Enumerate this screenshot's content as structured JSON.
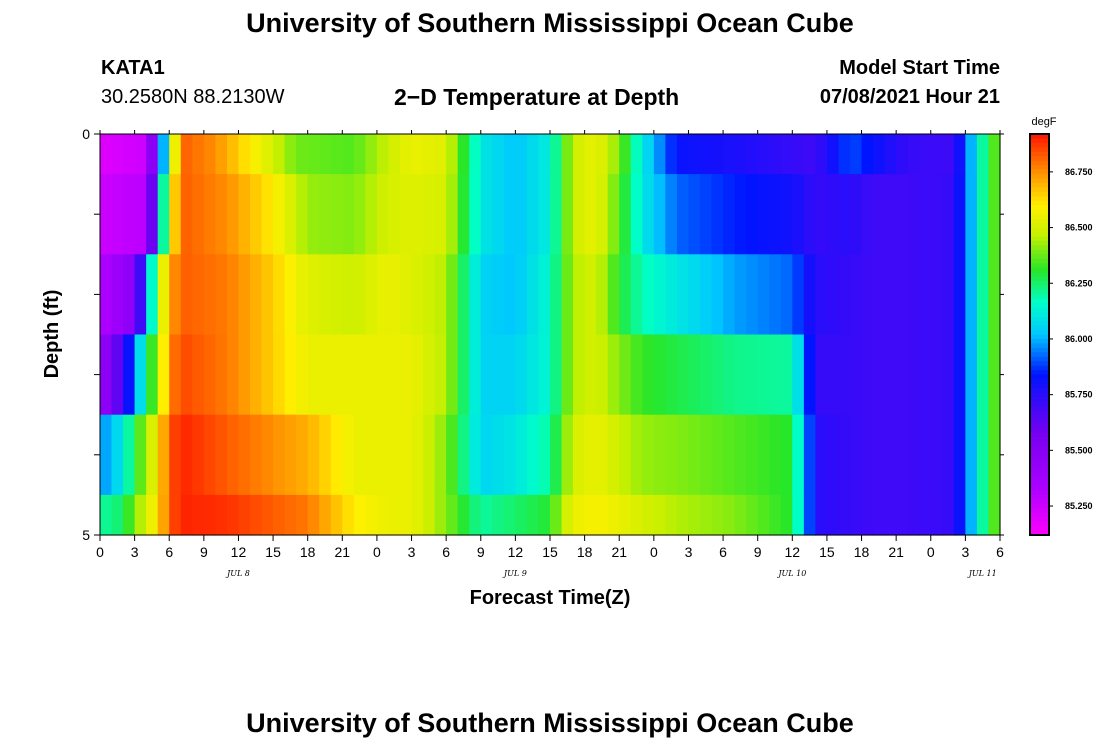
{
  "header": {
    "title": "University of Southern Mississippi Ocean Cube",
    "station_id": "KATA1",
    "coordinates": "30.2580N  88.2130W",
    "plot_title": "2−D Temperature at Depth",
    "model_start_label": "Model Start Time",
    "model_start_value": "07/08/2021 Hour 21"
  },
  "footer": {
    "title": "University of Southern Mississippi Ocean Cube"
  },
  "chart_data": {
    "type": "heatmap",
    "xlabel": "Forecast Time(Z)",
    "ylabel": "Depth (ft)",
    "colorbar_unit": "degF",
    "x_unit": "hours since 07/08 00Z",
    "x_range": [
      0,
      78
    ],
    "y_range": [
      0,
      5
    ],
    "y_ticks": [
      "0",
      "5"
    ],
    "x_ticks": [
      "0",
      "3",
      "6",
      "9",
      "12",
      "15",
      "18",
      "21",
      "0",
      "3",
      "6",
      "9",
      "12",
      "15",
      "18",
      "21",
      "0",
      "3",
      "6",
      "9",
      "12",
      "15",
      "18",
      "21",
      "0",
      "3",
      "6"
    ],
    "day_labels": [
      "JUL 8",
      "JUL 9",
      "JUL 10",
      "JUL 11"
    ],
    "colorbar_ticks": [
      "86.750",
      "86.500",
      "86.250",
      "86.000",
      "85.750",
      "85.500",
      "85.250"
    ],
    "colorbar_range": [
      85.12,
      86.92
    ],
    "depth_layers": [
      {
        "depth_top": 0.0,
        "depth_bottom": 0.5,
        "values": [
          [
            0,
            85.2
          ],
          [
            4,
            85.25
          ],
          [
            5,
            85.7
          ],
          [
            6,
            86.3
          ],
          [
            7,
            86.82
          ],
          [
            10,
            86.75
          ],
          [
            14,
            86.55
          ],
          [
            17,
            86.38
          ],
          [
            22,
            86.35
          ],
          [
            25,
            86.48
          ],
          [
            27,
            86.55
          ],
          [
            30,
            86.52
          ],
          [
            33,
            86.1
          ],
          [
            36,
            86.02
          ],
          [
            39,
            86.12
          ],
          [
            40,
            86.3
          ],
          [
            41,
            86.48
          ],
          [
            43,
            86.55
          ],
          [
            45,
            86.4
          ],
          [
            47,
            86.1
          ],
          [
            50,
            85.82
          ],
          [
            55,
            85.78
          ],
          [
            60,
            85.72
          ],
          [
            62,
            85.7
          ],
          [
            65,
            85.9
          ],
          [
            67,
            85.82
          ],
          [
            70,
            85.72
          ],
          [
            74,
            85.7
          ],
          [
            75,
            85.9
          ],
          [
            77,
            86.3
          ],
          [
            78,
            86.4
          ]
        ]
      },
      {
        "depth_top": 0.5,
        "depth_bottom": 1.5,
        "values": [
          [
            0,
            85.25
          ],
          [
            4,
            85.3
          ],
          [
            5,
            85.9
          ],
          [
            6,
            86.5
          ],
          [
            7,
            86.82
          ],
          [
            11,
            86.75
          ],
          [
            15,
            86.6
          ],
          [
            18,
            86.42
          ],
          [
            22,
            86.4
          ],
          [
            25,
            86.5
          ],
          [
            27,
            86.52
          ],
          [
            30,
            86.5
          ],
          [
            33,
            86.1
          ],
          [
            36,
            86.02
          ],
          [
            39,
            86.12
          ],
          [
            40,
            86.3
          ],
          [
            41,
            86.48
          ],
          [
            43,
            86.55
          ],
          [
            45,
            86.35
          ],
          [
            47,
            86.1
          ],
          [
            50,
            85.92
          ],
          [
            55,
            85.85
          ],
          [
            60,
            85.8
          ],
          [
            62,
            85.72
          ],
          [
            65,
            85.75
          ],
          [
            67,
            85.7
          ],
          [
            70,
            85.7
          ],
          [
            74,
            85.72
          ],
          [
            75,
            85.9
          ],
          [
            77,
            86.3
          ],
          [
            78,
            86.4
          ]
        ]
      },
      {
        "depth_top": 1.5,
        "depth_bottom": 2.5,
        "values": [
          [
            0,
            85.3
          ],
          [
            3,
            85.5
          ],
          [
            4,
            85.9
          ],
          [
            5,
            86.4
          ],
          [
            6,
            86.7
          ],
          [
            7,
            86.82
          ],
          [
            11,
            86.78
          ],
          [
            15,
            86.65
          ],
          [
            18,
            86.52
          ],
          [
            22,
            86.48
          ],
          [
            25,
            86.55
          ],
          [
            27,
            86.52
          ],
          [
            30,
            86.45
          ],
          [
            33,
            86.05
          ],
          [
            36,
            86.02
          ],
          [
            39,
            86.15
          ],
          [
            40,
            86.3
          ],
          [
            41,
            86.45
          ],
          [
            43,
            86.5
          ],
          [
            45,
            86.3
          ],
          [
            47,
            86.18
          ],
          [
            50,
            86.1
          ],
          [
            55,
            85.98
          ],
          [
            60,
            85.92
          ],
          [
            62,
            85.75
          ],
          [
            65,
            85.72
          ],
          [
            67,
            85.7
          ],
          [
            70,
            85.7
          ],
          [
            74,
            85.72
          ],
          [
            75,
            85.9
          ],
          [
            77,
            86.3
          ],
          [
            78,
            86.4
          ]
        ]
      },
      {
        "depth_top": 2.5,
        "depth_bottom": 3.5,
        "values": [
          [
            0,
            85.4
          ],
          [
            2,
            85.7
          ],
          [
            3,
            85.95
          ],
          [
            4,
            86.2
          ],
          [
            5,
            86.45
          ],
          [
            6,
            86.75
          ],
          [
            7,
            86.85
          ],
          [
            11,
            86.78
          ],
          [
            15,
            86.65
          ],
          [
            18,
            86.55
          ],
          [
            22,
            86.55
          ],
          [
            25,
            86.55
          ],
          [
            27,
            86.55
          ],
          [
            30,
            86.45
          ],
          [
            33,
            86.05
          ],
          [
            36,
            86.05
          ],
          [
            39,
            86.15
          ],
          [
            40,
            86.3
          ],
          [
            41,
            86.45
          ],
          [
            43,
            86.5
          ],
          [
            45,
            86.4
          ],
          [
            47,
            86.32
          ],
          [
            50,
            86.28
          ],
          [
            55,
            86.22
          ],
          [
            60,
            86.2
          ],
          [
            62,
            85.72
          ],
          [
            65,
            85.72
          ],
          [
            67,
            85.7
          ],
          [
            70,
            85.7
          ],
          [
            74,
            85.72
          ],
          [
            75,
            85.9
          ],
          [
            77,
            86.3
          ],
          [
            78,
            86.4
          ]
        ]
      },
      {
        "depth_top": 3.5,
        "depth_bottom": 4.5,
        "values": [
          [
            0,
            85.95
          ],
          [
            2,
            86.1
          ],
          [
            3,
            86.3
          ],
          [
            4,
            86.42
          ],
          [
            5,
            86.6
          ],
          [
            6,
            86.82
          ],
          [
            7,
            86.9
          ],
          [
            11,
            86.82
          ],
          [
            15,
            86.75
          ],
          [
            18,
            86.7
          ],
          [
            22,
            86.55
          ],
          [
            25,
            86.55
          ],
          [
            27,
            86.55
          ],
          [
            30,
            86.4
          ],
          [
            33,
            86.05
          ],
          [
            36,
            86.1
          ],
          [
            39,
            86.2
          ],
          [
            40,
            86.35
          ],
          [
            41,
            86.5
          ],
          [
            43,
            86.55
          ],
          [
            45,
            86.48
          ],
          [
            47,
            86.42
          ],
          [
            50,
            86.4
          ],
          [
            55,
            86.35
          ],
          [
            60,
            86.3
          ],
          [
            62,
            85.75
          ],
          [
            65,
            85.72
          ],
          [
            67,
            85.7
          ],
          [
            70,
            85.7
          ],
          [
            74,
            85.72
          ],
          [
            75,
            85.9
          ],
          [
            77,
            86.3
          ],
          [
            78,
            86.4
          ]
        ]
      },
      {
        "depth_top": 4.5,
        "depth_bottom": 5.0,
        "values": [
          [
            0,
            86.2
          ],
          [
            2,
            86.25
          ],
          [
            3,
            86.4
          ],
          [
            4,
            86.5
          ],
          [
            5,
            86.62
          ],
          [
            6,
            86.82
          ],
          [
            7,
            86.9
          ],
          [
            11,
            86.88
          ],
          [
            15,
            86.82
          ],
          [
            18,
            86.78
          ],
          [
            22,
            86.6
          ],
          [
            25,
            86.55
          ],
          [
            27,
            86.55
          ],
          [
            30,
            86.4
          ],
          [
            33,
            86.2
          ],
          [
            36,
            86.25
          ],
          [
            39,
            86.3
          ],
          [
            40,
            86.45
          ],
          [
            41,
            86.55
          ],
          [
            43,
            86.58
          ],
          [
            45,
            86.55
          ],
          [
            47,
            86.5
          ],
          [
            50,
            86.45
          ],
          [
            55,
            86.4
          ],
          [
            60,
            86.3
          ],
          [
            62,
            85.75
          ],
          [
            65,
            85.72
          ],
          [
            67,
            85.7
          ],
          [
            70,
            85.7
          ],
          [
            74,
            85.72
          ],
          [
            75,
            85.9
          ],
          [
            77,
            86.3
          ],
          [
            78,
            86.4
          ]
        ]
      }
    ]
  }
}
